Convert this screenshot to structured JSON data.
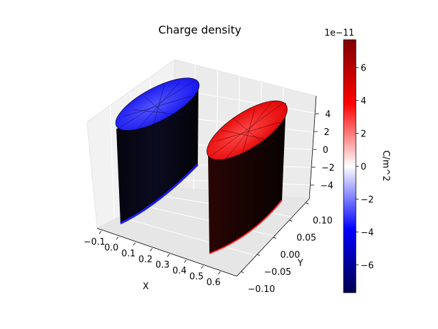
{
  "chart_data": {
    "type": "3d-surface",
    "title": "Charge density",
    "xlabel": "X",
    "ylabel": "Y",
    "zlabel": "",
    "x_ticks": [
      "−0.1",
      "0.0",
      "0.1",
      "0.2",
      "0.3",
      "0.4",
      "0.5",
      "0.6"
    ],
    "y_ticks": [
      "−0.10",
      "−0.05",
      "0.00",
      "0.05",
      "0.10"
    ],
    "z_ticks": [
      "−4",
      "−2",
      "0",
      "2",
      "4"
    ],
    "xlim": [
      -0.1,
      0.6
    ],
    "ylim": [
      -0.1,
      0.1
    ],
    "zlim": [
      -5,
      5
    ],
    "objects": [
      {
        "label": "left cylinder (negative charge)",
        "center_x": 0.0,
        "charge_color": "#2a2aff"
      },
      {
        "label": "right cylinder (positive charge)",
        "center_x": 0.5,
        "charge_color": "#ff2a2a"
      }
    ],
    "colorbar": {
      "label": "C/m^2",
      "offset": "1e−11",
      "ticks": [
        "−6",
        "−4",
        "−2",
        "0",
        "2",
        "4",
        "6"
      ],
      "range": [
        -7.7,
        7.7
      ],
      "colors": [
        "#00004c",
        "#0000ff",
        "#ffffff",
        "#ff0000",
        "#800000"
      ]
    }
  }
}
